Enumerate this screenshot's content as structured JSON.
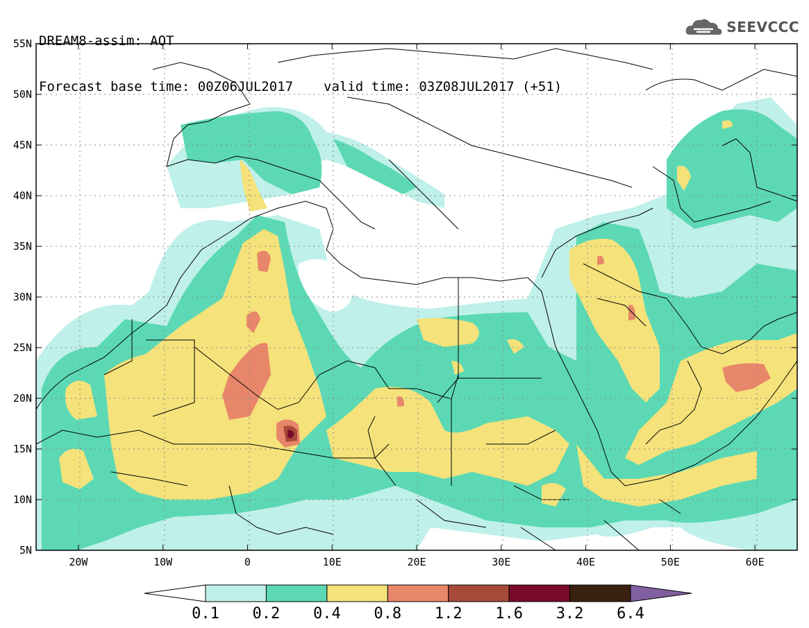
{
  "header": {
    "line1": "DREAM8-assim: AOT",
    "base": "Forecast base time: 00Z06JUL2017",
    "valid": "valid time: 03Z08JUL2017 (+51)"
  },
  "logo": {
    "text": "SEEVCCC",
    "icon": "cloud-icon"
  },
  "map": {
    "lon_range": [
      -25,
      65
    ],
    "lat_range": [
      5,
      55
    ],
    "x_ticks": [
      "20W",
      "10W",
      "0",
      "10E",
      "20E",
      "30E",
      "40E",
      "50E",
      "60E"
    ],
    "x_tick_values": [
      -20,
      -10,
      0,
      10,
      20,
      30,
      40,
      50,
      60
    ],
    "y_ticks": [
      "5N",
      "10N",
      "15N",
      "20N",
      "25N",
      "30N",
      "35N",
      "40N",
      "45N",
      "50N",
      "55N"
    ],
    "y_tick_values": [
      5,
      10,
      15,
      20,
      25,
      30,
      35,
      40,
      45,
      50,
      55
    ],
    "grid": "dotted"
  },
  "colorbar": {
    "labels": [
      "0.1",
      "0.2",
      "0.4",
      "0.8",
      "1.2",
      "1.6",
      "3.2",
      "6.4"
    ],
    "colors": [
      "#ffffff",
      "#bff0e9",
      "#5cd9b4",
      "#f5e27a",
      "#e8866a",
      "#a84a3a",
      "#7a0a2a",
      "#3a2010",
      "#8060a0"
    ]
  }
}
